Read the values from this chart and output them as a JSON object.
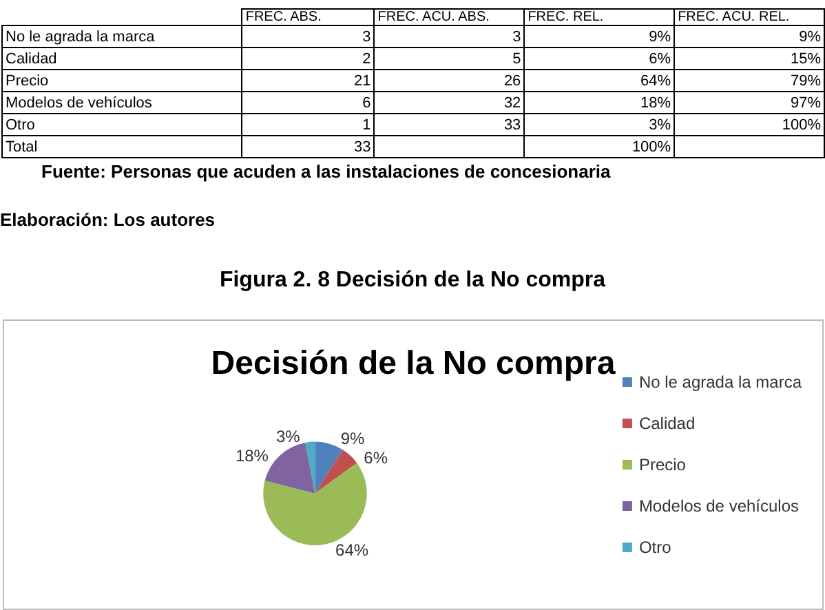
{
  "chart_data": [
    {
      "type": "other",
      "data_labels": true,
      "categories": [
        "No le agrada la marca",
        "Calidad",
        "Precio",
        "Modelos de vehículos",
        "Otro",
        "Total"
      ],
      "series": [
        {
          "name": "FREC. ABS.",
          "values": [
            3,
            2,
            21,
            6,
            1,
            33
          ]
        },
        {
          "name": "FREC. ACU. ABS.",
          "values": [
            3,
            5,
            26,
            32,
            33,
            null
          ]
        },
        {
          "name": "FREC. REL.",
          "values": [
            9,
            6,
            64,
            18,
            3,
            100
          ],
          "value_labels": [
            "9%",
            "6%",
            "64%",
            "18%",
            "3%",
            "100%"
          ]
        },
        {
          "name": "FREC. ACU. REL.",
          "values": [
            9,
            15,
            79,
            97,
            100,
            null
          ],
          "value_labels": [
            "9%",
            "15%",
            "79%",
            "97%",
            "100%",
            null
          ]
        }
      ],
      "annotations": [
        "Fuente: Personas que acuden a las instalaciones de concesionaria",
        "Elaboración: Los autores",
        "Figura 2. 8 Decisión de la No compra"
      ]
    },
    {
      "type": "pie",
      "title": "Decisión de la No compra",
      "categories": [
        "No le agrada la marca",
        "Calidad",
        "Precio",
        "Modelos de vehículos",
        "Otro"
      ],
      "values": [
        9,
        6,
        64,
        18,
        3
      ],
      "value_labels": [
        "9%",
        "6%",
        "64%",
        "18%",
        "3%"
      ],
      "colors": [
        "#4f81bd",
        "#c0504d",
        "#9bbb59",
        "#8064a2",
        "#4bacc6"
      ],
      "legend": "right"
    }
  ]
}
